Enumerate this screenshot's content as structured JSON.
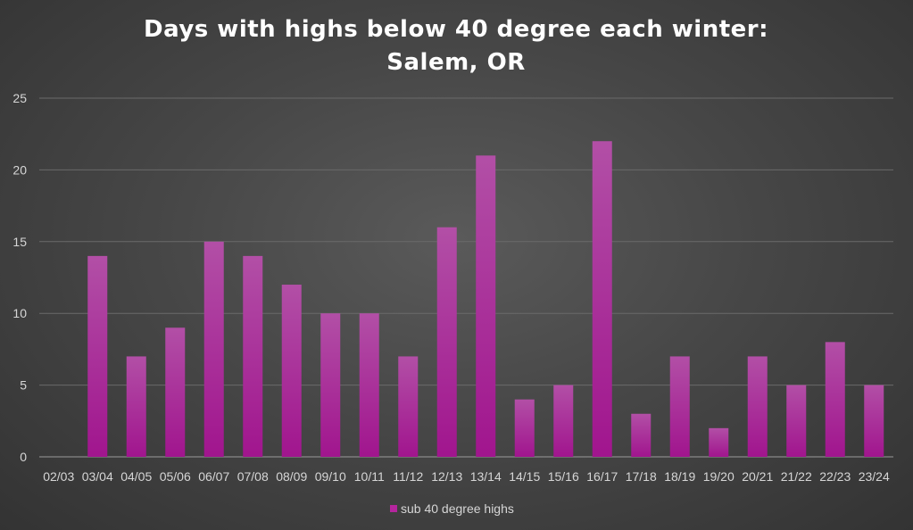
{
  "chart_data": {
    "type": "bar",
    "title": [
      "Days with highs below 40 degree each winter:",
      "Salem, OR"
    ],
    "xlabel": "",
    "ylabel": "",
    "ylim": [
      0,
      25
    ],
    "yticks": [
      0,
      5,
      10,
      15,
      20,
      25
    ],
    "grid": true,
    "legend_position": "bottom",
    "categories": [
      "02/03",
      "03/04",
      "04/05",
      "05/06",
      "06/07",
      "07/08",
      "08/09",
      "09/10",
      "10/11",
      "11/12",
      "12/13",
      "13/14",
      "14/15",
      "15/16",
      "16/17",
      "17/18",
      "18/19",
      "19/20",
      "20/21",
      "21/22",
      "22/23",
      "23/24"
    ],
    "series": [
      {
        "name": "sub 40 degree highs",
        "color": "#b5259e",
        "values": [
          0,
          14,
          7,
          9,
          15,
          14,
          12,
          10,
          10,
          7,
          16,
          21,
          4,
          5,
          22,
          3,
          7,
          2,
          7,
          5,
          8,
          5
        ]
      }
    ]
  }
}
